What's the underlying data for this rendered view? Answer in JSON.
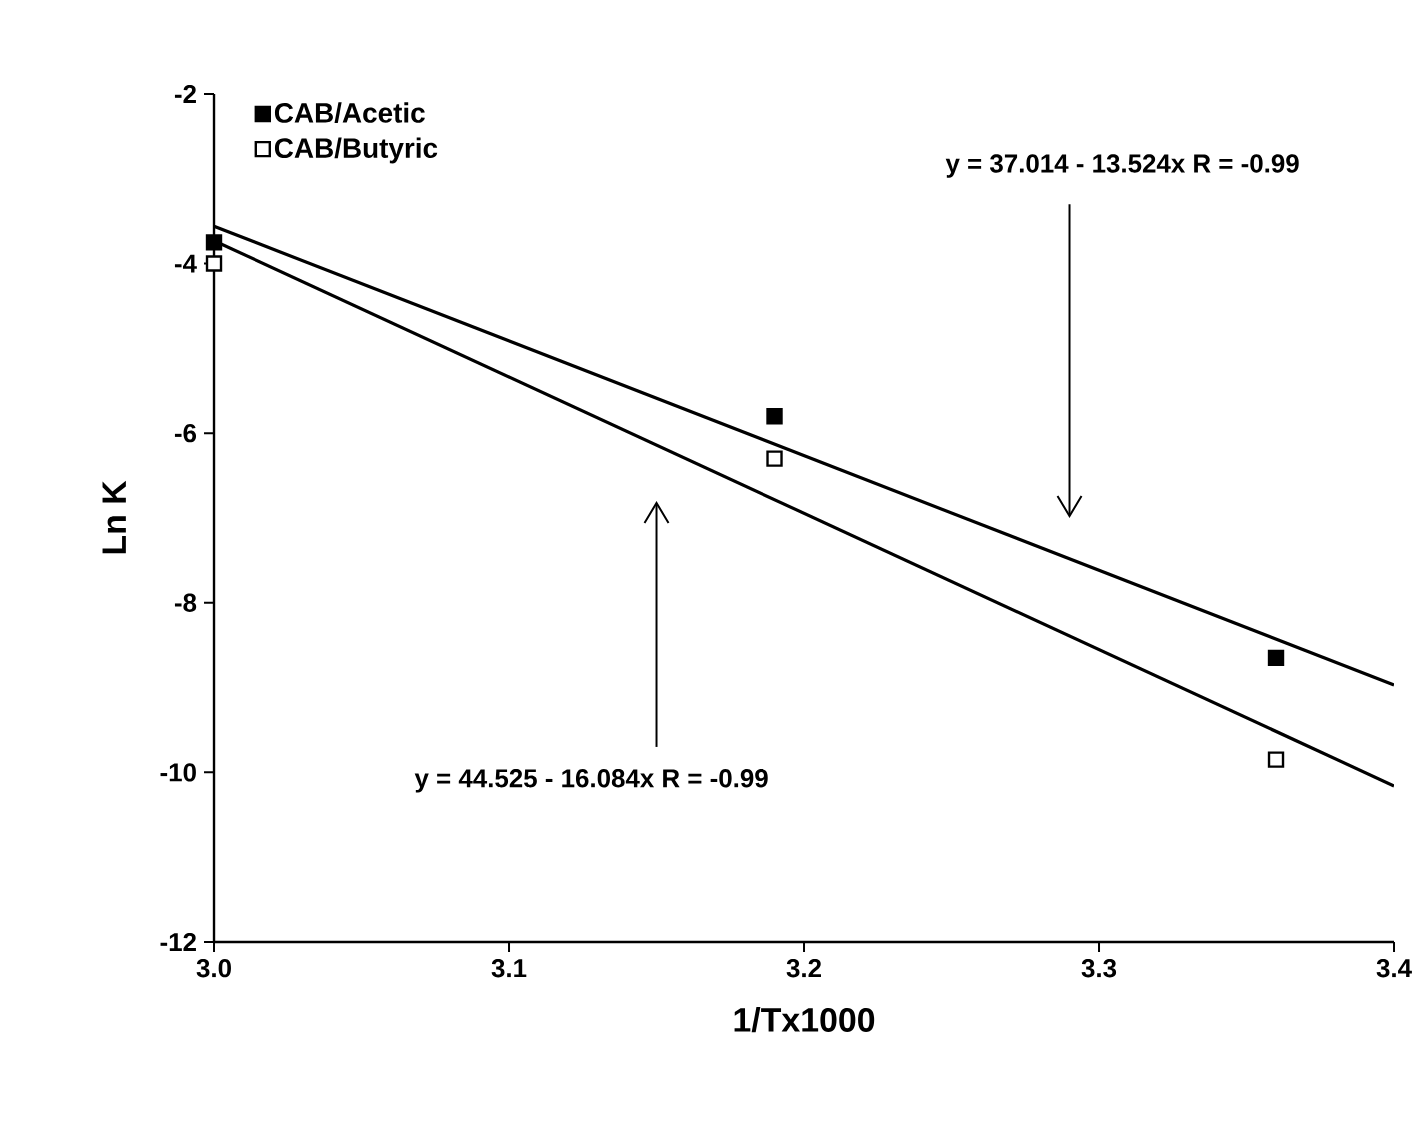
{
  "chart_data": {
    "type": "scatter",
    "xlabel": "1/Tx1000",
    "ylabel": "Ln K",
    "xlim": [
      3.0,
      3.4
    ],
    "xticks": [
      {
        "value": 3.0,
        "label": "3.0"
      },
      {
        "value": 3.1,
        "label": "3.1"
      },
      {
        "value": 3.2,
        "label": "3.2"
      },
      {
        "value": 3.3,
        "label": "3.3"
      },
      {
        "value": 3.4,
        "label": "3.4"
      }
    ],
    "ylim": [
      -12,
      -2
    ],
    "yticks": [
      -12,
      -10,
      -8,
      -6,
      -4,
      -2
    ],
    "grid": false,
    "legend": "top left",
    "series": [
      {
        "name": "CAB/Acetic",
        "marker": "square",
        "color": "#000000",
        "x": [
          3.0,
          3.19,
          3.36
        ],
        "values": [
          -3.75,
          -5.8,
          -8.65
        ]
      },
      {
        "name": "CAB/Butyric",
        "marker": "square",
        "color": "#ffffff",
        "x": [
          3.0,
          3.19,
          3.36
        ],
        "values": [
          -4.0,
          -6.3,
          -9.85
        ]
      },
      {
        "type": "line",
        "color": "#000000",
        "x": [
          3.0,
          3.4
        ],
        "values": [
          -3.56,
          -8.97
        ]
      },
      {
        "type": "line",
        "color": "#000000",
        "x": [
          3.0,
          3.4
        ],
        "values": [
          -3.73,
          -10.16
        ]
      }
    ],
    "annotations": [
      "y = 37.014 - 13.524x   R = -0.99",
      "y = 44.525 - 16.084x   R = -0.99"
    ]
  }
}
